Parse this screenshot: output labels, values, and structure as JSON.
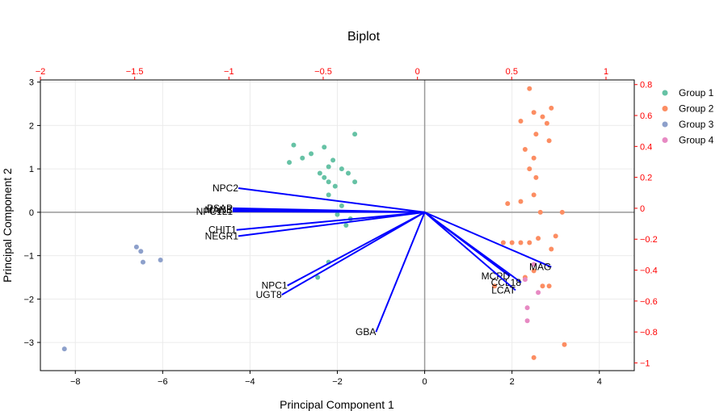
{
  "chart_data": {
    "type": "scatter",
    "title": "Biplot",
    "xlabel": "Principal Component 1",
    "ylabel": "Principal Component 2",
    "xlim": [
      -8.8,
      4.8
    ],
    "ylim": [
      -3.65,
      3.05
    ],
    "xticks": [
      -8,
      -6,
      -4,
      -2,
      0,
      2,
      4
    ],
    "yticks": [
      -3,
      -2,
      -1,
      0,
      1,
      2,
      3
    ],
    "loading_xlim": [
      -2.0,
      1.15
    ],
    "loading_ylim": [
      -1.05,
      0.83
    ],
    "loading_xticks": [
      -2,
      -1.5,
      -1,
      -0.5,
      0,
      0.5,
      1
    ],
    "loading_yticks": [
      -1,
      -0.8,
      -0.6,
      -0.4,
      -0.2,
      0,
      0.2,
      0.4,
      0.6,
      0.8
    ],
    "loading_axis_color": "#ff0000",
    "vector_color": "#0000ff",
    "grid": true,
    "legend_position": "right",
    "series": [
      {
        "name": "Group 1",
        "color": "#66c2a5",
        "points": [
          [
            -3.0,
            1.55
          ],
          [
            -2.8,
            1.25
          ],
          [
            -2.6,
            1.35
          ],
          [
            -3.1,
            1.15
          ],
          [
            -2.3,
            1.5
          ],
          [
            -2.2,
            1.05
          ],
          [
            -2.1,
            1.2
          ],
          [
            -1.9,
            1.0
          ],
          [
            -1.6,
            1.8
          ],
          [
            -2.4,
            0.9
          ],
          [
            -2.3,
            0.8
          ],
          [
            -2.2,
            0.7
          ],
          [
            -2.05,
            0.6
          ],
          [
            -1.75,
            0.9
          ],
          [
            -1.6,
            0.7
          ],
          [
            -2.2,
            0.4
          ],
          [
            -1.9,
            0.15
          ],
          [
            -2.0,
            -0.05
          ],
          [
            -1.7,
            -0.15
          ],
          [
            -1.8,
            -0.3
          ],
          [
            -2.2,
            -1.15
          ],
          [
            -2.45,
            -1.5
          ]
        ]
      },
      {
        "name": "Group 2",
        "color": "#fc8d62",
        "points": [
          [
            2.4,
            2.85
          ],
          [
            2.9,
            2.4
          ],
          [
            2.5,
            2.3
          ],
          [
            2.7,
            2.2
          ],
          [
            2.2,
            2.1
          ],
          [
            2.8,
            2.05
          ],
          [
            2.55,
            1.8
          ],
          [
            2.3,
            1.45
          ],
          [
            2.85,
            1.65
          ],
          [
            2.5,
            1.25
          ],
          [
            2.4,
            1.0
          ],
          [
            2.55,
            0.8
          ],
          [
            2.5,
            0.4
          ],
          [
            2.2,
            0.25
          ],
          [
            1.9,
            0.2
          ],
          [
            2.65,
            0.0
          ],
          [
            3.15,
            0.0
          ],
          [
            2.6,
            -0.6
          ],
          [
            3.0,
            -0.55
          ],
          [
            2.4,
            -0.7
          ],
          [
            2.9,
            -0.85
          ],
          [
            1.8,
            -0.7
          ],
          [
            2.0,
            -0.7
          ],
          [
            2.2,
            -0.7
          ],
          [
            2.5,
            -1.35
          ],
          [
            2.3,
            -1.5
          ],
          [
            2.7,
            -1.7
          ],
          [
            1.6,
            -1.7
          ],
          [
            2.85,
            -1.7
          ],
          [
            3.2,
            -3.05
          ],
          [
            2.5,
            -3.35
          ]
        ]
      },
      {
        "name": "Group 3",
        "color": "#8da0cb",
        "points": [
          [
            -6.6,
            -0.8
          ],
          [
            -6.5,
            -0.9
          ],
          [
            -6.45,
            -1.15
          ],
          [
            -6.05,
            -1.1
          ],
          [
            -8.25,
            -3.15
          ]
        ]
      },
      {
        "name": "Group 4",
        "color": "#e78ac3",
        "points": [
          [
            2.5,
            -1.2
          ],
          [
            2.3,
            -1.55
          ],
          [
            2.6,
            -1.85
          ],
          [
            2.35,
            -2.2
          ],
          [
            2.35,
            -2.5
          ]
        ]
      }
    ],
    "vectors": [
      {
        "label": "NPC2",
        "x": -0.95,
        "y": 0.13
      },
      {
        "label": "PSAP",
        "x": -0.98,
        "y": 0.0
      },
      {
        "label": "MANB",
        "x": -0.98,
        "y": -0.01
      },
      {
        "label": "NPC1L1",
        "x": -0.98,
        "y": -0.02
      },
      {
        "label": "CHIT1",
        "x": -0.96,
        "y": -0.14
      },
      {
        "label": "NEGR1",
        "x": -0.95,
        "y": -0.18
      },
      {
        "label": "NPC1",
        "x": -0.69,
        "y": -0.5
      },
      {
        "label": "UGT8",
        "x": -0.72,
        "y": -0.56
      },
      {
        "label": "GBA",
        "x": -0.22,
        "y": -0.8
      },
      {
        "label": "MAG",
        "x": 0.71,
        "y": -0.38
      },
      {
        "label": "MCPD",
        "x": 0.49,
        "y": -0.44
      },
      {
        "label": "CCL18",
        "x": 0.55,
        "y": -0.48
      },
      {
        "label": "LCAT",
        "x": 0.52,
        "y": -0.53
      }
    ]
  }
}
